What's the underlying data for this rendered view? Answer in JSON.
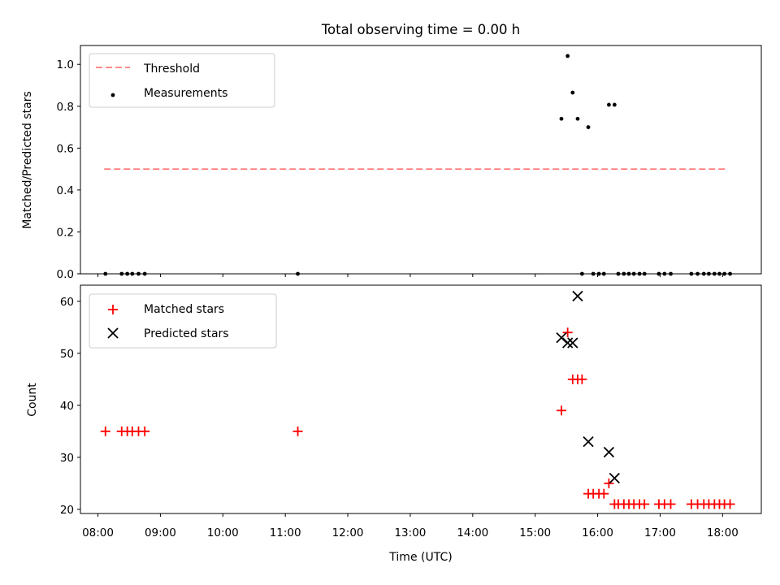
{
  "chart_data": [
    {
      "type": "scatter",
      "title": "Total observing time = 0.00 h",
      "ylabel": "Matched/Predicted stars",
      "xlabel": "",
      "x_unit": "hours UTC",
      "xlim": [
        7.72,
        18.62
      ],
      "ylim": [
        0.0,
        1.09
      ],
      "yticks": [
        0.0,
        0.2,
        0.4,
        0.6,
        0.8,
        1.0
      ],
      "ytick_labels": [
        "0.0",
        "0.2",
        "0.4",
        "0.6",
        "0.8",
        "1.0"
      ],
      "legend_position": "upper left",
      "threshold": {
        "name": "Threshold",
        "y": 0.5,
        "x_range": [
          8.1,
          18.05
        ],
        "color": "#ff7f7f",
        "style": "dashed"
      },
      "series": [
        {
          "name": "Measurements",
          "color": "#000000",
          "marker": "dot",
          "x": [
            8.12,
            8.38,
            8.47,
            8.55,
            8.65,
            8.75,
            11.2,
            15.42,
            15.52,
            15.6,
            15.68,
            15.75,
            15.85,
            15.93,
            16.02,
            16.1,
            16.18,
            16.27,
            16.33,
            16.42,
            16.5,
            16.58,
            16.67,
            16.75,
            16.98,
            17.07,
            17.17,
            17.5,
            17.6,
            17.7,
            17.78,
            17.87,
            17.95,
            18.03,
            18.12
          ],
          "y": [
            0,
            0,
            0,
            0,
            0,
            0,
            0,
            0.74,
            1.04,
            0.865,
            0.74,
            0,
            0.7,
            0,
            0,
            0,
            0.807,
            0.807,
            0,
            0,
            0,
            0,
            0,
            0,
            0,
            0,
            0,
            0,
            0,
            0,
            0,
            0,
            0,
            0,
            0
          ]
        }
      ]
    },
    {
      "type": "scatter",
      "title": "",
      "ylabel": "Count",
      "xlabel": "Time (UTC)",
      "x_unit": "hours UTC",
      "xlim": [
        7.72,
        18.62
      ],
      "ylim": [
        19.2,
        63.1
      ],
      "yticks": [
        20,
        30,
        40,
        50,
        60
      ],
      "ytick_labels": [
        "20",
        "30",
        "40",
        "50",
        "60"
      ],
      "xticks": [
        8,
        9,
        10,
        11,
        12,
        13,
        14,
        15,
        16,
        17,
        18
      ],
      "xtick_labels": [
        "08:00",
        "09:00",
        "10:00",
        "11:00",
        "12:00",
        "13:00",
        "14:00",
        "15:00",
        "16:00",
        "17:00",
        "18:00"
      ],
      "legend_position": "upper left",
      "series": [
        {
          "name": "Matched stars",
          "color": "#ff0000",
          "marker": "plus",
          "x": [
            8.12,
            8.38,
            8.47,
            8.55,
            8.65,
            8.75,
            11.2,
            15.42,
            15.52,
            15.6,
            15.68,
            15.75,
            15.85,
            15.93,
            16.02,
            16.1,
            16.18,
            16.27,
            16.33,
            16.42,
            16.5,
            16.58,
            16.67,
            16.75,
            16.98,
            17.07,
            17.17,
            17.5,
            17.6,
            17.7,
            17.78,
            17.87,
            17.95,
            18.03,
            18.12
          ],
          "y": [
            35,
            35,
            35,
            35,
            35,
            35,
            35,
            39,
            54,
            45,
            45,
            45,
            23,
            23,
            23,
            23,
            25,
            21,
            21,
            21,
            21,
            21,
            21,
            21,
            21,
            21,
            21,
            21,
            21,
            21,
            21,
            21,
            21,
            21,
            21
          ]
        },
        {
          "name": "Predicted stars",
          "color": "#000000",
          "marker": "x",
          "x": [
            15.42,
            15.52,
            15.6,
            15.68,
            15.85,
            16.18,
            16.27
          ],
          "y": [
            53,
            52,
            52,
            61,
            33,
            31,
            26
          ]
        }
      ]
    }
  ]
}
